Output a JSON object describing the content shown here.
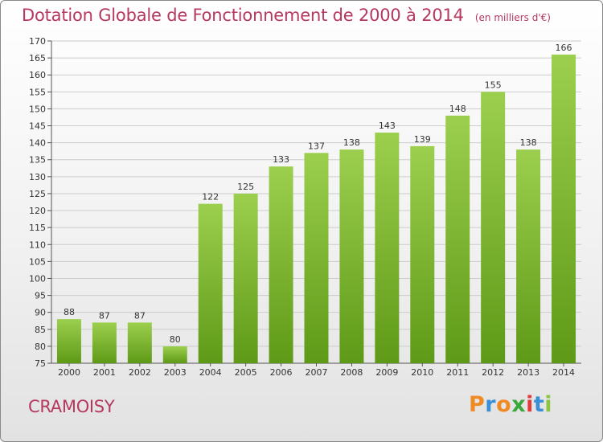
{
  "header": {
    "title": "Dotation Globale de Fonctionnement de 2000 à 2014",
    "subtitle": "(en milliers d'€)"
  },
  "footer": {
    "commune": "CRAMOISY",
    "brand": "Proxiti"
  },
  "colors": {
    "title": "#b5385f",
    "bar_top": "#9ccf4e",
    "bar_bottom": "#5e9a17",
    "grid": "#cccccc",
    "brand_letters": [
      "#f08a24",
      "#3a8fd6",
      "#f08a24",
      "#3aa93a",
      "#e23b3b",
      "#3a8fd6",
      "#8cc63f"
    ]
  },
  "chart_data": {
    "type": "bar",
    "categories": [
      "2000",
      "2001",
      "2002",
      "2003",
      "2004",
      "2005",
      "2006",
      "2007",
      "2008",
      "2009",
      "2010",
      "2011",
      "2012",
      "2013",
      "2014"
    ],
    "values": [
      88,
      87,
      87,
      80,
      122,
      125,
      133,
      137,
      138,
      143,
      139,
      148,
      155,
      138,
      166
    ],
    "ylim": [
      75,
      170
    ],
    "ytick_step": 5,
    "grid": true,
    "data_labels": true
  }
}
